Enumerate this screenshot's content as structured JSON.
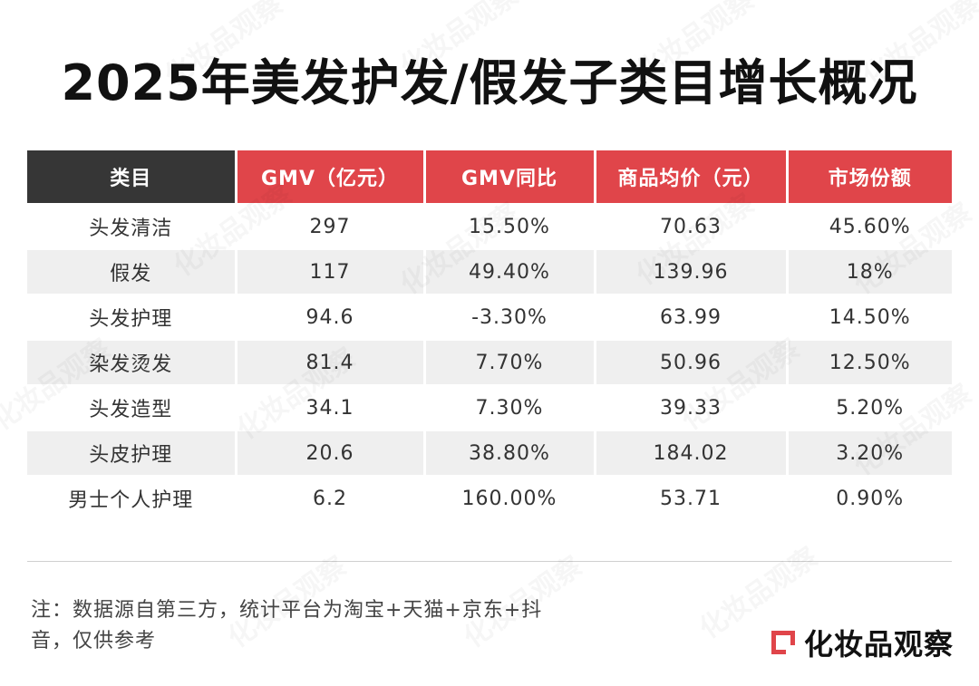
{
  "title": "2025年美发护发/假发子类目增长概况",
  "table": {
    "headers": [
      "类目",
      "GMV（亿元）",
      "GMV同比",
      "商品均价（元）",
      "市场份额"
    ],
    "rows": [
      [
        "头发清洁",
        "297",
        "15.50%",
        "70.63",
        "45.60%"
      ],
      [
        "假发",
        "117",
        "49.40%",
        "139.96",
        "18%"
      ],
      [
        "头发护理",
        "94.6",
        "-3.30%",
        "63.99",
        "14.50%"
      ],
      [
        "染发烫发",
        "81.4",
        "7.70%",
        "50.96",
        "12.50%"
      ],
      [
        "头发造型",
        "34.1",
        "7.30%",
        "39.33",
        "5.20%"
      ],
      [
        "头皮护理",
        "20.6",
        "38.80%",
        "184.02",
        "3.20%"
      ],
      [
        "男士个人护理",
        "6.2",
        "160.00%",
        "53.71",
        "0.90%"
      ]
    ]
  },
  "note": {
    "line1": "注：数据源自第三方，统计平台为淘宝+天猫+京东+抖",
    "line2": "音，仅供参考"
  },
  "brand": {
    "name": "化妆品观察",
    "logo_icon": "square-bracket-logo-icon"
  },
  "watermark": "化妆品观察",
  "colors": {
    "header_dark": "#363636",
    "header_red": "#e0454a",
    "row_alt": "#efefef",
    "brand_red": "#e0454a"
  }
}
